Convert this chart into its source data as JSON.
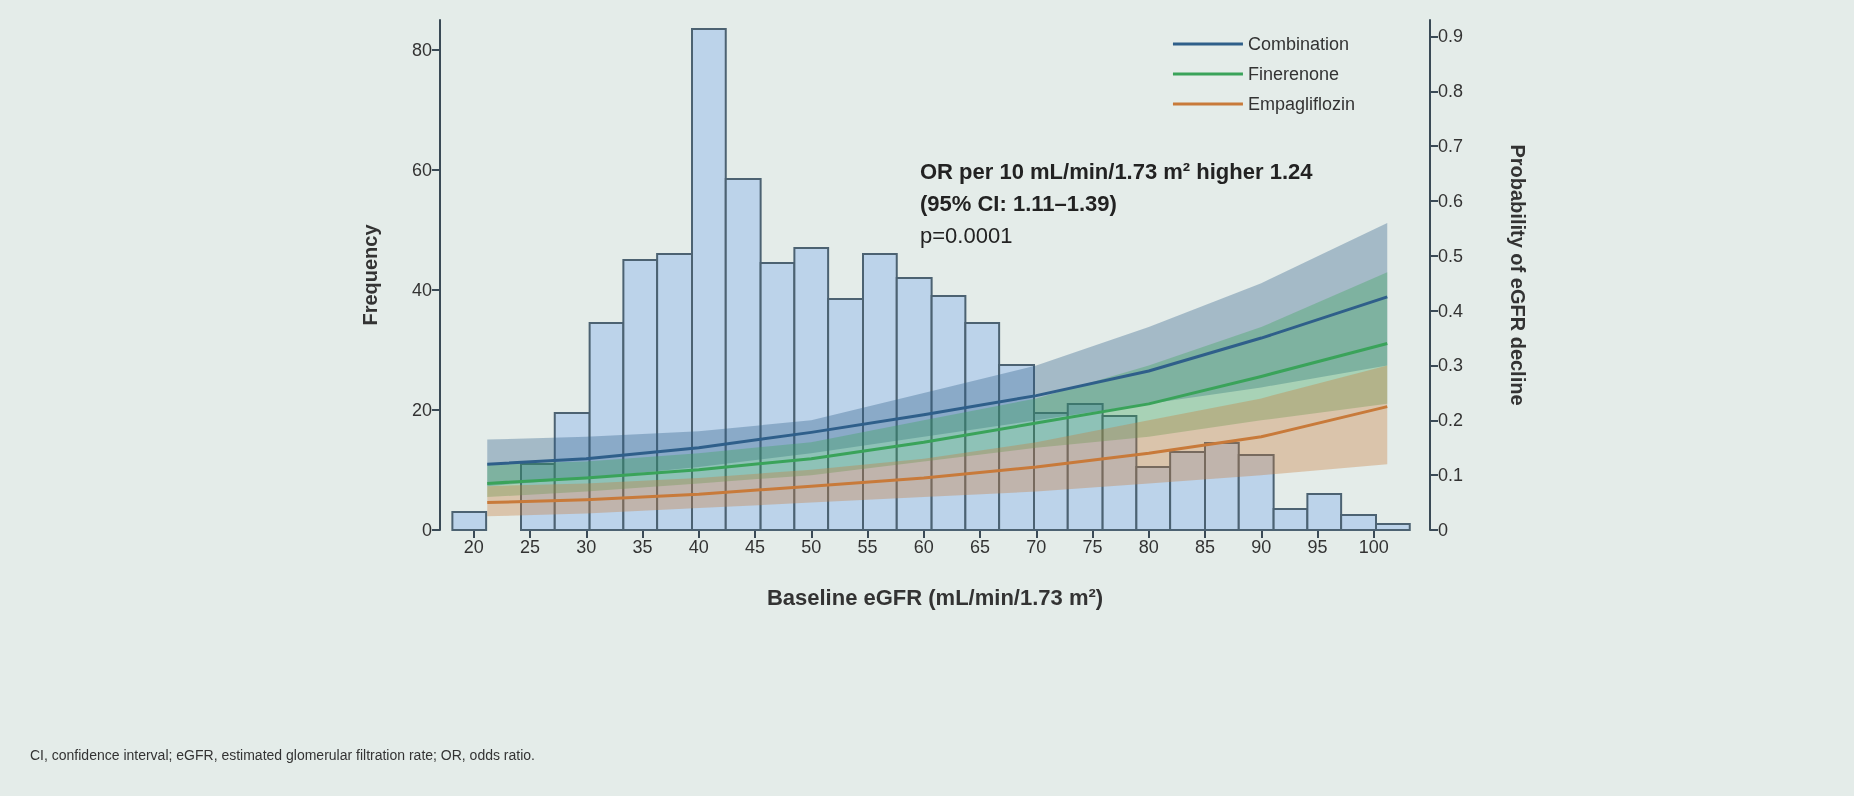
{
  "chart_data": {
    "type": "histogram",
    "xlabel": "Baseline eGFR (mL/min/1.73 m²)",
    "ylabel": "Frequency",
    "y2label": "Probability of eGFR decline",
    "annotations": [
      "OR per 10 mL/min/1.73 m² higher 1.24",
      "(95% CI: 1.11–1.39)",
      "p=0.0001",
      "CI, confidence interval; eGFR, estimated glomerular filtration rate; OR, odds ratio."
    ],
    "bins": [
      18.1,
      21.1,
      24.2,
      27.2,
      30.3,
      33.3,
      36.3,
      39.4,
      42.4,
      45.5,
      48.5,
      51.5,
      54.6,
      57.6,
      60.7,
      63.7,
      66.7,
      69.8,
      72.8,
      75.9,
      78.9,
      81.9,
      85.0,
      88.0,
      91.1,
      94.1,
      97.1,
      100.2,
      103.2
    ],
    "values": [
      3,
      0,
      11,
      19.5,
      34.5,
      45,
      46,
      83.5,
      58.5,
      44.5,
      47,
      38.5,
      46,
      42,
      39,
      34.5,
      27.5,
      19.5,
      21,
      19,
      10.5,
      13,
      14.5,
      12.5,
      3.5,
      6,
      2.5,
      1
    ],
    "color": "#bcd3ea",
    "series": [
      {
        "name": "Combination",
        "type": "line",
        "axis": "y2",
        "color": "#2f5f8a",
        "x": [
          21.2,
          30,
          40,
          50,
          60,
          70,
          80,
          90,
          101.2
        ],
        "values": [
          0.12,
          0.13,
          0.15,
          0.178,
          0.21,
          0.245,
          0.29,
          0.35,
          0.425
        ],
        "lower": [
          0.08,
          0.095,
          0.115,
          0.14,
          0.17,
          0.2,
          0.23,
          0.26,
          0.3
        ],
        "upper": [
          0.165,
          0.17,
          0.18,
          0.2,
          0.25,
          0.3,
          0.37,
          0.45,
          0.56
        ]
      },
      {
        "name": "Finerenone",
        "type": "line",
        "axis": "y2",
        "color": "#3aa35a",
        "x": [
          21.2,
          30,
          40,
          50,
          60,
          70,
          80,
          90,
          101.2
        ],
        "values": [
          0.085,
          0.095,
          0.11,
          0.13,
          0.16,
          0.195,
          0.23,
          0.28,
          0.34
        ],
        "lower": [
          0.06,
          0.07,
          0.085,
          0.1,
          0.125,
          0.15,
          0.17,
          0.2,
          0.23
        ],
        "upper": [
          0.12,
          0.125,
          0.14,
          0.16,
          0.2,
          0.24,
          0.3,
          0.37,
          0.47
        ]
      },
      {
        "name": "Empagliflozin",
        "type": "line",
        "axis": "y2",
        "color": "#c87a3a",
        "x": [
          21.2,
          30,
          40,
          50,
          60,
          70,
          80,
          90,
          101.2
        ],
        "values": [
          0.05,
          0.055,
          0.065,
          0.08,
          0.095,
          0.115,
          0.14,
          0.17,
          0.225
        ],
        "lower": [
          0.025,
          0.03,
          0.04,
          0.05,
          0.06,
          0.07,
          0.085,
          0.1,
          0.12
        ],
        "upper": [
          0.08,
          0.085,
          0.095,
          0.11,
          0.13,
          0.16,
          0.2,
          0.24,
          0.3
        ]
      }
    ],
    "xlim": [
      17,
      105
    ],
    "xticks": [
      20,
      25,
      30,
      35,
      40,
      45,
      50,
      55,
      60,
      65,
      70,
      75,
      80,
      85,
      90,
      95,
      100
    ],
    "ylim": [
      0,
      85
    ],
    "yticks": [
      0,
      20,
      40,
      60,
      80
    ],
    "y2lim": [
      0,
      0.93
    ],
    "y2ticks": [
      0,
      0.1,
      0.2,
      0.3,
      0.4,
      0.5,
      0.6,
      0.7,
      0.8,
      0.9
    ],
    "grid": false,
    "legend": "top right"
  }
}
